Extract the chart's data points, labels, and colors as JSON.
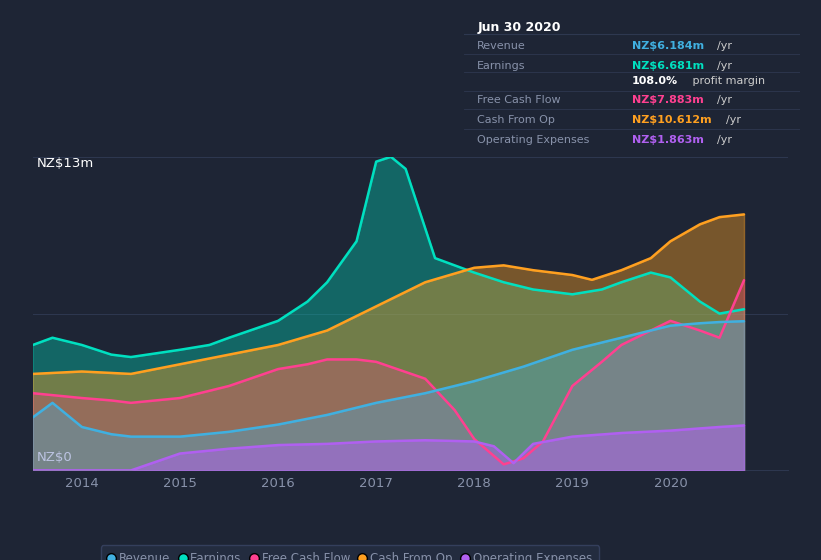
{
  "bg_color": "#1e2535",
  "plot_bg_color": "#1e2535",
  "title_y_label": "NZ$13m",
  "bottom_y_label": "NZ$0",
  "x_ticks": [
    2014,
    2015,
    2016,
    2017,
    2018,
    2019,
    2020
  ],
  "ylim": [
    0,
    13
  ],
  "xlim": [
    2013.5,
    2021.2
  ],
  "series": {
    "earnings": {
      "label": "Earnings",
      "color": "#00e0c0",
      "fill_alpha": 0.35,
      "fill_color": "#00e0c0",
      "x": [
        2013.5,
        2013.7,
        2014.0,
        2014.3,
        2014.5,
        2015.0,
        2015.3,
        2015.5,
        2016.0,
        2016.3,
        2016.5,
        2016.8,
        2017.0,
        2017.15,
        2017.3,
        2017.6,
        2018.0,
        2018.3,
        2018.6,
        2019.0,
        2019.3,
        2019.5,
        2019.8,
        2020.0,
        2020.3,
        2020.5,
        2020.75
      ],
      "y": [
        5.2,
        5.5,
        5.2,
        4.8,
        4.7,
        5.0,
        5.2,
        5.5,
        6.2,
        7.0,
        7.8,
        9.5,
        12.8,
        13.0,
        12.5,
        8.8,
        8.2,
        7.8,
        7.5,
        7.3,
        7.5,
        7.8,
        8.2,
        8.0,
        7.0,
        6.5,
        6.681
      ]
    },
    "cash_from_op": {
      "label": "Cash From Op",
      "color": "#ffa020",
      "fill_alpha": 0.4,
      "fill_color": "#ffa020",
      "x": [
        2013.5,
        2014.0,
        2014.5,
        2015.0,
        2015.5,
        2016.0,
        2016.5,
        2017.0,
        2017.5,
        2018.0,
        2018.3,
        2018.6,
        2019.0,
        2019.2,
        2019.5,
        2019.8,
        2020.0,
        2020.3,
        2020.5,
        2020.75
      ],
      "y": [
        4.0,
        4.1,
        4.0,
        4.4,
        4.8,
        5.2,
        5.8,
        6.8,
        7.8,
        8.4,
        8.5,
        8.3,
        8.1,
        7.9,
        8.3,
        8.8,
        9.5,
        10.2,
        10.5,
        10.612
      ]
    },
    "free_cash_flow": {
      "label": "Free Cash Flow",
      "color": "#ff4090",
      "fill_alpha": 0.25,
      "fill_color": "#ff4090",
      "x": [
        2013.5,
        2014.0,
        2014.3,
        2014.5,
        2015.0,
        2015.5,
        2016.0,
        2016.3,
        2016.5,
        2016.8,
        2017.0,
        2017.5,
        2017.8,
        2018.0,
        2018.2,
        2018.3,
        2018.5,
        2018.7,
        2019.0,
        2019.3,
        2019.5,
        2019.8,
        2020.0,
        2020.3,
        2020.5,
        2020.75
      ],
      "y": [
        3.2,
        3.0,
        2.9,
        2.8,
        3.0,
        3.5,
        4.2,
        4.4,
        4.6,
        4.6,
        4.5,
        3.8,
        2.5,
        1.3,
        0.6,
        0.25,
        0.5,
        1.2,
        3.5,
        4.5,
        5.2,
        5.8,
        6.2,
        5.8,
        5.5,
        7.883
      ]
    },
    "revenue": {
      "label": "Revenue",
      "color": "#40b0e0",
      "fill_alpha": 0.35,
      "fill_color": "#40b0e0",
      "x": [
        2013.5,
        2013.7,
        2014.0,
        2014.3,
        2014.5,
        2015.0,
        2015.5,
        2016.0,
        2016.5,
        2017.0,
        2017.5,
        2018.0,
        2018.5,
        2019.0,
        2019.5,
        2020.0,
        2020.3,
        2020.5,
        2020.75
      ],
      "y": [
        2.2,
        2.8,
        1.8,
        1.5,
        1.4,
        1.4,
        1.6,
        1.9,
        2.3,
        2.8,
        3.2,
        3.7,
        4.3,
        5.0,
        5.5,
        6.0,
        6.1,
        6.15,
        6.184
      ]
    },
    "operating_expenses": {
      "label": "Operating Expenses",
      "color": "#b060f0",
      "fill_alpha": 0.5,
      "fill_color": "#b060f0",
      "x": [
        2013.5,
        2014.0,
        2014.5,
        2015.0,
        2015.5,
        2016.0,
        2016.5,
        2017.0,
        2017.5,
        2018.0,
        2018.2,
        2018.4,
        2018.6,
        2019.0,
        2019.5,
        2020.0,
        2020.5,
        2020.75
      ],
      "y": [
        0.0,
        0.0,
        0.0,
        0.7,
        0.9,
        1.05,
        1.1,
        1.2,
        1.25,
        1.2,
        1.0,
        0.3,
        1.1,
        1.4,
        1.55,
        1.65,
        1.8,
        1.863
      ]
    }
  },
  "tooltip": {
    "title": "Jun 30 2020",
    "rows": [
      {
        "label": "Revenue",
        "value": "NZ$6.184m",
        "unit": "/yr",
        "color": "#40b0e0"
      },
      {
        "label": "Earnings",
        "value": "NZ$6.681m",
        "unit": "/yr",
        "color": "#00e0c0"
      },
      {
        "label": "",
        "value": "108.0%",
        "unit": " profit margin",
        "color": "#ffffff"
      },
      {
        "label": "Free Cash Flow",
        "value": "NZ$7.883m",
        "unit": "/yr",
        "color": "#ff4090"
      },
      {
        "label": "Cash From Op",
        "value": "NZ$10.612m",
        "unit": "/yr",
        "color": "#ffa020"
      },
      {
        "label": "Operating Expenses",
        "value": "NZ$1.863m",
        "unit": "/yr",
        "color": "#b060f0"
      }
    ]
  },
  "legend": [
    {
      "label": "Revenue",
      "color": "#40b0e0"
    },
    {
      "label": "Earnings",
      "color": "#00e0c0"
    },
    {
      "label": "Free Cash Flow",
      "color": "#ff4090"
    },
    {
      "label": "Cash From Op",
      "color": "#ffa020"
    },
    {
      "label": "Operating Expenses",
      "color": "#b060f0"
    }
  ],
  "grid_color": "#2e3850",
  "text_color": "#8892aa",
  "legend_bg": "#252e42",
  "legend_edge": "#3a4565"
}
